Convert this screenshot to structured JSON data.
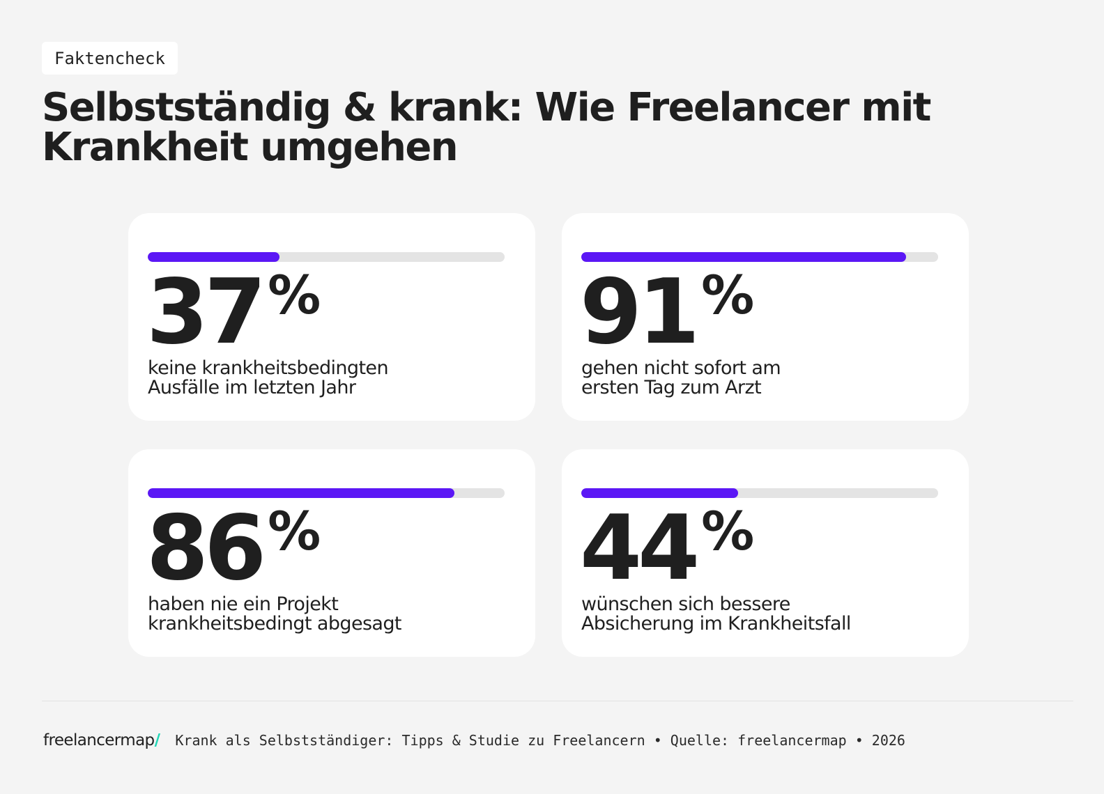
{
  "tag": "Faktencheck",
  "title": "Selbstständig & krank: Wie Freelancer mit Krankheit umgehen",
  "stats": [
    {
      "value": "37",
      "unit": "%",
      "percent": 37,
      "description": "keine krankheitsbedingten\nAusfälle im letzten Jahr"
    },
    {
      "value": "91",
      "unit": "%",
      "percent": 91,
      "description": "gehen nicht sofort am\nersten Tag zum Arzt"
    },
    {
      "value": "86",
      "unit": "%",
      "percent": 86,
      "description": "haben nie ein Projekt\nkrankheitsbedingt abgesagt"
    },
    {
      "value": "44",
      "unit": "%",
      "percent": 44,
      "description": "wünschen sich bessere\nAbsicherung im Krankheitsfall"
    }
  ],
  "chart_data": {
    "type": "bar",
    "categories": [
      "keine krankheitsbedingten Ausfälle im letzten Jahr",
      "gehen nicht sofort am ersten Tag zum Arzt",
      "haben nie ein Projekt krankheitsbedingt abgesagt",
      "wünschen sich bessere Absicherung im Krankheitsfall"
    ],
    "values": [
      37,
      91,
      86,
      44
    ],
    "ylim": [
      0,
      100
    ]
  },
  "footer": {
    "logo": "freelancermap",
    "logo_slash": "/",
    "source": "Krank als Selbstständiger: Tipps & Studie zu Freelancern • Quelle: freelancermap • 2026"
  },
  "colors": {
    "background": "#f4f4f4",
    "card": "#ffffff",
    "bar_fill": "#5b17f5",
    "bar_track": "#e4e4e4",
    "logo_accent": "#1fd6b6"
  }
}
